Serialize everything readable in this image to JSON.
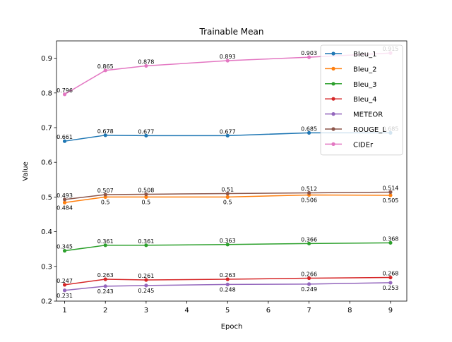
{
  "chart_data": {
    "type": "line",
    "title": "Trainable Mean",
    "xlabel": "Epoch",
    "ylabel": "Value",
    "x": [
      1,
      2,
      3,
      5,
      7,
      9
    ],
    "xlim": [
      0.8,
      9.4
    ],
    "ylim": [
      0.2,
      0.95
    ],
    "xticks": [
      1,
      2,
      3,
      4,
      5,
      6,
      7,
      8,
      9
    ],
    "yticks": [
      0.2,
      0.3,
      0.4,
      0.5,
      0.6,
      0.7,
      0.8,
      0.9
    ],
    "grid": false,
    "legend_position": "top-right",
    "series": [
      {
        "name": "Bleu_1",
        "color": "#1f77b4",
        "values": [
          0.661,
          0.678,
          0.677,
          0.677,
          0.685,
          0.685
        ],
        "labels": [
          "0.661",
          "0.678",
          "0.677",
          "0.677",
          "0.685",
          "0.685"
        ]
      },
      {
        "name": "Bleu_2",
        "color": "#ff7f0e",
        "values": [
          0.484,
          0.5,
          0.5,
          0.5,
          0.506,
          0.505
        ],
        "labels": [
          "0.484",
          "0.5",
          "0.5",
          "0.5",
          "0.506",
          "0.505"
        ]
      },
      {
        "name": "Bleu_3",
        "color": "#2ca02c",
        "values": [
          0.345,
          0.361,
          0.361,
          0.363,
          0.366,
          0.368
        ],
        "labels": [
          "0.345",
          "0.361",
          "0.361",
          "0.363",
          "0.366",
          "0.368"
        ]
      },
      {
        "name": "Bleu_4",
        "color": "#d62728",
        "values": [
          0.247,
          0.263,
          0.261,
          0.263,
          0.266,
          0.268
        ],
        "labels": [
          "0.247",
          "0.263",
          "0.261",
          "0.263",
          "0.266",
          "0.268"
        ]
      },
      {
        "name": "METEOR",
        "color": "#9467bd",
        "values": [
          0.231,
          0.243,
          0.245,
          0.248,
          0.249,
          0.253
        ],
        "labels": [
          "0.231",
          "0.243",
          "0.245",
          "0.248",
          "0.249",
          "0.253"
        ]
      },
      {
        "name": "ROUGE_L",
        "color": "#8c564b",
        "values": [
          0.493,
          0.507,
          0.508,
          0.51,
          0.512,
          0.514
        ],
        "labels": [
          "0.493",
          "0.507",
          "0.508",
          "0.51",
          "0.512",
          "0.514"
        ]
      },
      {
        "name": "CIDEr",
        "color": "#e377c2",
        "values": [
          0.796,
          0.865,
          0.878,
          0.893,
          0.903,
          0.915
        ],
        "labels": [
          "0.796",
          "0.865",
          "0.878",
          "0.893",
          "0.903",
          "0.915"
        ]
      }
    ]
  }
}
